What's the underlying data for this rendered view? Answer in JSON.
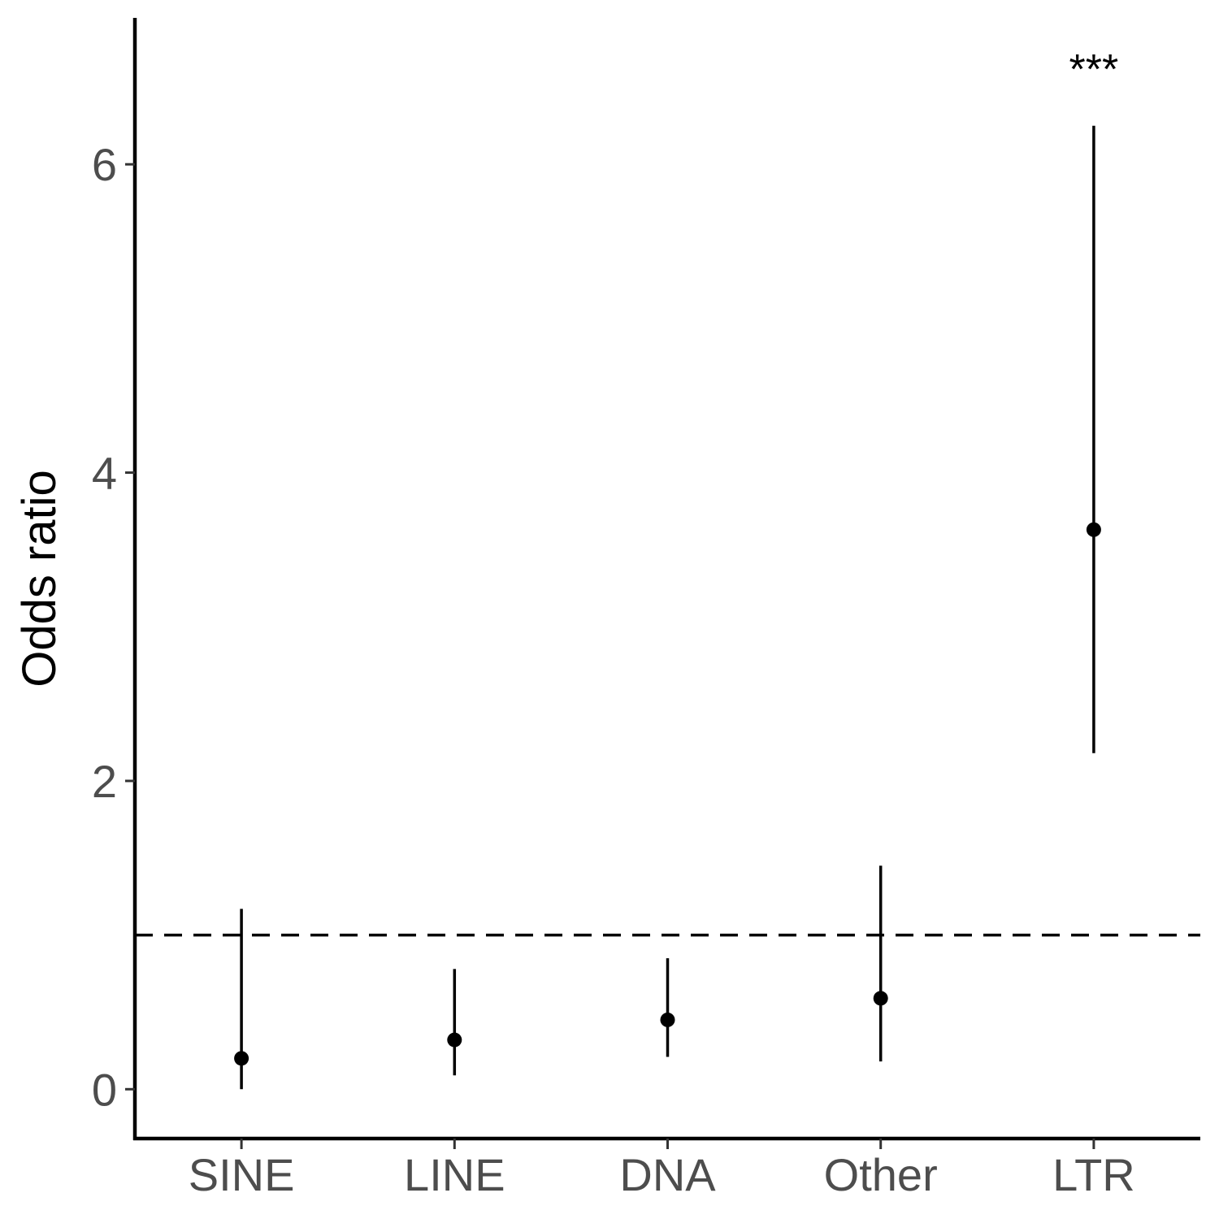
{
  "chart_data": {
    "type": "scatter",
    "title": "",
    "xlabel": "",
    "ylabel": "Odds ratio",
    "categories": [
      "SINE",
      "LINE",
      "DNA",
      "Other",
      "LTR"
    ],
    "points": [
      {
        "category": "SINE",
        "value": 0.2,
        "lower": 0.0,
        "upper": 1.17,
        "annotation": ""
      },
      {
        "category": "LINE",
        "value": 0.32,
        "lower": 0.09,
        "upper": 0.78,
        "annotation": ""
      },
      {
        "category": "DNA",
        "value": 0.45,
        "lower": 0.21,
        "upper": 0.85,
        "annotation": ""
      },
      {
        "category": "Other",
        "value": 0.59,
        "lower": 0.18,
        "upper": 1.45,
        "annotation": ""
      },
      {
        "category": "LTR",
        "value": 3.63,
        "lower": 2.18,
        "upper": 6.25,
        "annotation": "***"
      }
    ],
    "reference_line": 1,
    "ylim": [
      -0.32,
      6.95
    ],
    "yticks": [
      "0",
      "2",
      "4",
      "6"
    ],
    "grid": false,
    "colors": {
      "points": "#000000",
      "reference_line": "#000000",
      "axes": "#000000"
    }
  }
}
